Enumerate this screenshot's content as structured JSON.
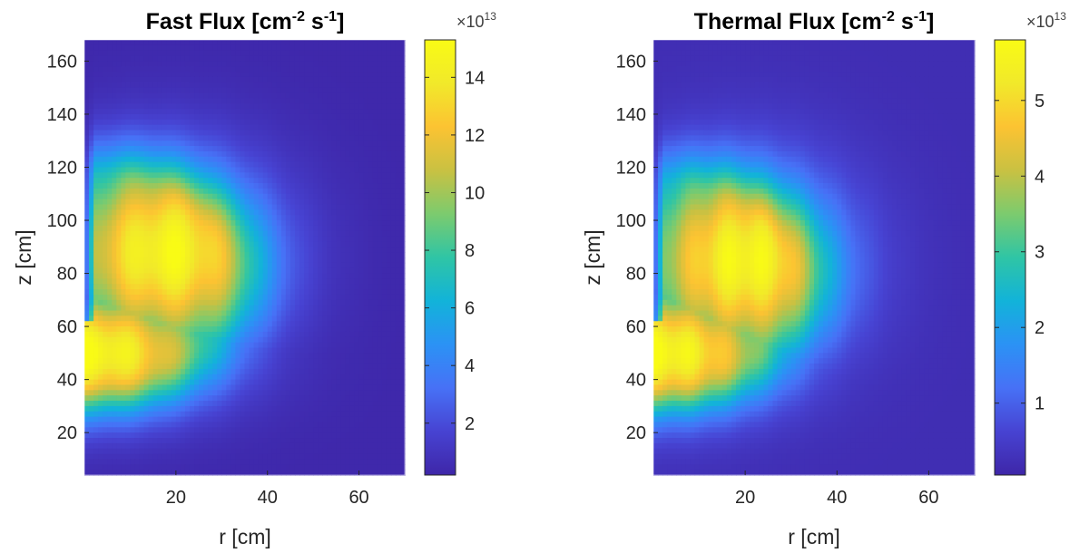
{
  "chart_data": [
    {
      "type": "heatmap",
      "title": "Fast Flux [cm",
      "title_sup1": "-2",
      "title_mid": " s",
      "title_sup2": "-1",
      "title_end": "]",
      "xlabel": "r [cm]",
      "ylabel": "z [cm]",
      "xlim": [
        0,
        70
      ],
      "ylim": [
        4,
        168
      ],
      "xticks": [
        20,
        40,
        60
      ],
      "yticks": [
        20,
        40,
        60,
        80,
        100,
        120,
        140,
        160
      ],
      "colorbar": {
        "ticks": [
          2,
          4,
          6,
          8,
          10,
          12,
          14
        ],
        "range": [
          0.2,
          15.3
        ],
        "multiplier_base": "×10",
        "multiplier_exp": "13"
      },
      "field": {
        "peak_value": 15.3,
        "floor_value": 0.3,
        "upper_peak_r": 18,
        "upper_peak_z": 88,
        "lower_peak_z": 50,
        "notch_r": 2.5,
        "notch_z": 62,
        "core_radius": 50,
        "core_bottom": 10,
        "core_top": 145,
        "fuel_rings": 5
      },
      "colormap": [
        "#3e26a8",
        "#4743d2",
        "#4771f6",
        "#2b92f5",
        "#12b3d9",
        "#2fc5a5",
        "#7ccb6e",
        "#c9c142",
        "#fcc332",
        "#f1e92a",
        "#f9fb15"
      ]
    },
    {
      "type": "heatmap",
      "title": "Thermal Flux [cm",
      "title_sup1": "-2",
      "title_mid": " s",
      "title_sup2": "-1",
      "title_end": "]",
      "xlabel": "r [cm]",
      "ylabel": "z [cm]",
      "xlim": [
        0,
        70
      ],
      "ylim": [
        4,
        168
      ],
      "xticks": [
        20,
        40,
        60
      ],
      "yticks": [
        20,
        40,
        60,
        80,
        100,
        120,
        140,
        160
      ],
      "colorbar": {
        "ticks": [
          1,
          2,
          3,
          4,
          5
        ],
        "range": [
          0.05,
          5.8
        ],
        "multiplier_base": "×10",
        "multiplier_exp": "13"
      },
      "field": {
        "peak_value": 5.8,
        "floor_value": 0.2,
        "upper_peak_r": 20,
        "upper_peak_z": 85,
        "lower_peak_z": 50,
        "notch_r": 2.5,
        "notch_z": 62,
        "core_radius": 48,
        "core_bottom": 10,
        "core_top": 142,
        "fuel_rings": 6
      },
      "colormap": [
        "#3e26a8",
        "#4743d2",
        "#4771f6",
        "#2b92f5",
        "#12b3d9",
        "#2fc5a5",
        "#7ccb6e",
        "#c9c142",
        "#fcc332",
        "#f1e92a",
        "#f9fb15"
      ]
    }
  ]
}
